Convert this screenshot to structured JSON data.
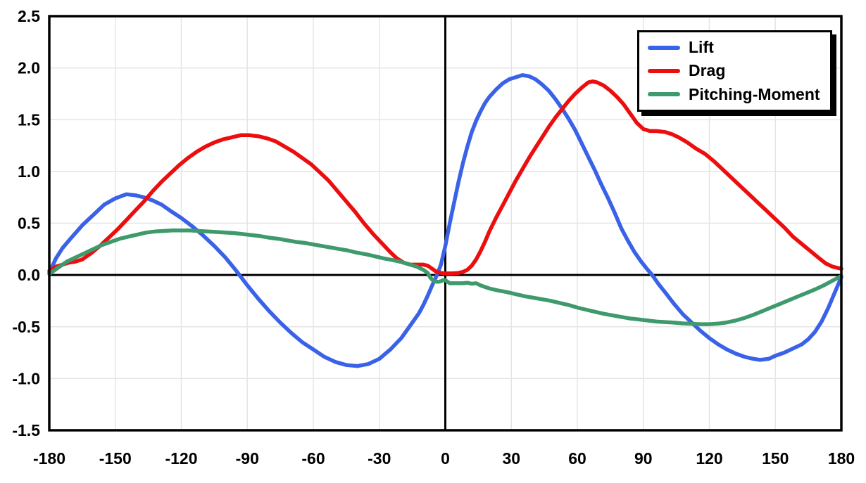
{
  "chart_data": {
    "type": "line",
    "title": "",
    "xlabel": "",
    "ylabel": "",
    "xlim": [
      -180,
      180
    ],
    "ylim": [
      -1.5,
      2.5
    ],
    "grid": true,
    "legend_position": "top-right",
    "zero_axis_lines": true,
    "colors": {
      "grid": "#E5E5E7",
      "axis": "#000000",
      "background": "#FFFFFF"
    },
    "x_ticks": [
      -180,
      -150,
      -120,
      -90,
      -60,
      -30,
      0,
      30,
      60,
      90,
      120,
      150,
      180
    ],
    "x_tick_labels": [
      "-180",
      "-150",
      "-120",
      "-90",
      "-60",
      "-30",
      "0",
      "30",
      "60",
      "90",
      "120",
      "150",
      "180"
    ],
    "y_ticks": [
      2.5,
      2.0,
      1.5,
      1.0,
      0.5,
      0.0,
      -0.5,
      -1.0,
      -1.5
    ],
    "y_tick_labels": [
      "2.5",
      "2.0",
      "1.5",
      "1.0",
      "0.5",
      "0.0",
      "-0.5",
      "-1.0",
      "-1.5"
    ],
    "series": [
      {
        "name": "Lift",
        "color": "#3A62E8",
        "points": [
          [
            -180,
            0.02
          ],
          [
            -177,
            0.16
          ],
          [
            -174,
            0.26
          ],
          [
            -170,
            0.36
          ],
          [
            -165,
            0.48
          ],
          [
            -160,
            0.58
          ],
          [
            -155,
            0.68
          ],
          [
            -150,
            0.74
          ],
          [
            -145,
            0.78
          ],
          [
            -141,
            0.77
          ],
          [
            -137,
            0.75
          ],
          [
            -133,
            0.72
          ],
          [
            -129,
            0.68
          ],
          [
            -125,
            0.62
          ],
          [
            -120,
            0.55
          ],
          [
            -115,
            0.47
          ],
          [
            -110,
            0.38
          ],
          [
            -105,
            0.28
          ],
          [
            -100,
            0.17
          ],
          [
            -95,
            0.04
          ],
          [
            -90,
            -0.1
          ],
          [
            -85,
            -0.23
          ],
          [
            -80,
            -0.35
          ],
          [
            -75,
            -0.46
          ],
          [
            -70,
            -0.56
          ],
          [
            -65,
            -0.65
          ],
          [
            -60,
            -0.72
          ],
          [
            -55,
            -0.79
          ],
          [
            -50,
            -0.84
          ],
          [
            -45,
            -0.87
          ],
          [
            -40,
            -0.88
          ],
          [
            -35,
            -0.86
          ],
          [
            -30,
            -0.81
          ],
          [
            -25,
            -0.72
          ],
          [
            -20,
            -0.61
          ],
          [
            -15,
            -0.46
          ],
          [
            -12,
            -0.37
          ],
          [
            -10,
            -0.29
          ],
          [
            -8,
            -0.2
          ],
          [
            -6,
            -0.1
          ],
          [
            -4,
            -0.01
          ],
          [
            -2,
            0.1
          ],
          [
            0,
            0.28
          ],
          [
            2,
            0.5
          ],
          [
            4,
            0.7
          ],
          [
            6,
            0.9
          ],
          [
            8,
            1.08
          ],
          [
            10,
            1.24
          ],
          [
            12,
            1.38
          ],
          [
            14,
            1.49
          ],
          [
            16,
            1.58
          ],
          [
            18,
            1.66
          ],
          [
            20,
            1.72
          ],
          [
            23,
            1.79
          ],
          [
            26,
            1.85
          ],
          [
            29,
            1.89
          ],
          [
            32,
            1.91
          ],
          [
            35,
            1.93
          ],
          [
            38,
            1.92
          ],
          [
            41,
            1.89
          ],
          [
            44,
            1.84
          ],
          [
            47,
            1.78
          ],
          [
            50,
            1.7
          ],
          [
            53,
            1.61
          ],
          [
            56,
            1.51
          ],
          [
            59,
            1.4
          ],
          [
            62,
            1.27
          ],
          [
            65,
            1.14
          ],
          [
            68,
            1.01
          ],
          [
            71,
            0.87
          ],
          [
            74,
            0.74
          ],
          [
            77,
            0.6
          ],
          [
            80,
            0.45
          ],
          [
            83,
            0.33
          ],
          [
            86,
            0.22
          ],
          [
            89,
            0.13
          ],
          [
            92,
            0.05
          ],
          [
            94,
            0.0
          ],
          [
            97,
            -0.09
          ],
          [
            100,
            -0.17
          ],
          [
            104,
            -0.28
          ],
          [
            108,
            -0.38
          ],
          [
            112,
            -0.46
          ],
          [
            116,
            -0.54
          ],
          [
            120,
            -0.61
          ],
          [
            124,
            -0.67
          ],
          [
            128,
            -0.72
          ],
          [
            132,
            -0.76
          ],
          [
            136,
            -0.79
          ],
          [
            140,
            -0.81
          ],
          [
            143,
            -0.82
          ],
          [
            147,
            -0.81
          ],
          [
            150,
            -0.78
          ],
          [
            154,
            -0.75
          ],
          [
            158,
            -0.71
          ],
          [
            162,
            -0.67
          ],
          [
            165,
            -0.62
          ],
          [
            168,
            -0.55
          ],
          [
            171,
            -0.45
          ],
          [
            174,
            -0.32
          ],
          [
            177,
            -0.17
          ],
          [
            180,
            -0.02
          ]
        ]
      },
      {
        "name": "Drag",
        "color": "#EC0E0E",
        "points": [
          [
            -180,
            0.04
          ],
          [
            -177,
            0.08
          ],
          [
            -174,
            0.1
          ],
          [
            -171,
            0.12
          ],
          [
            -168,
            0.13
          ],
          [
            -165,
            0.15
          ],
          [
            -161,
            0.21
          ],
          [
            -157,
            0.28
          ],
          [
            -153,
            0.36
          ],
          [
            -149,
            0.44
          ],
          [
            -145,
            0.53
          ],
          [
            -141,
            0.62
          ],
          [
            -137,
            0.71
          ],
          [
            -133,
            0.81
          ],
          [
            -129,
            0.9
          ],
          [
            -125,
            0.98
          ],
          [
            -121,
            1.06
          ],
          [
            -117,
            1.13
          ],
          [
            -113,
            1.19
          ],
          [
            -109,
            1.24
          ],
          [
            -105,
            1.28
          ],
          [
            -101,
            1.31
          ],
          [
            -97,
            1.33
          ],
          [
            -93,
            1.35
          ],
          [
            -89,
            1.35
          ],
          [
            -85,
            1.34
          ],
          [
            -81,
            1.32
          ],
          [
            -77,
            1.29
          ],
          [
            -73,
            1.24
          ],
          [
            -69,
            1.19
          ],
          [
            -65,
            1.13
          ],
          [
            -61,
            1.07
          ],
          [
            -57,
            0.99
          ],
          [
            -53,
            0.91
          ],
          [
            -49,
            0.81
          ],
          [
            -45,
            0.71
          ],
          [
            -41,
            0.61
          ],
          [
            -37,
            0.5
          ],
          [
            -33,
            0.4
          ],
          [
            -29,
            0.31
          ],
          [
            -25,
            0.22
          ],
          [
            -22,
            0.16
          ],
          [
            -19,
            0.12
          ],
          [
            -16,
            0.1
          ],
          [
            -13,
            0.1
          ],
          [
            -10,
            0.1
          ],
          [
            -8,
            0.09
          ],
          [
            -6,
            0.06
          ],
          [
            -4,
            0.03
          ],
          [
            -2,
            0.02
          ],
          [
            0,
            0.015
          ],
          [
            3,
            0.015
          ],
          [
            6,
            0.02
          ],
          [
            8,
            0.03
          ],
          [
            10,
            0.05
          ],
          [
            12,
            0.09
          ],
          [
            14,
            0.15
          ],
          [
            16,
            0.23
          ],
          [
            18,
            0.32
          ],
          [
            20,
            0.42
          ],
          [
            23,
            0.55
          ],
          [
            26,
            0.67
          ],
          [
            29,
            0.79
          ],
          [
            32,
            0.91
          ],
          [
            35,
            1.02
          ],
          [
            38,
            1.13
          ],
          [
            41,
            1.23
          ],
          [
            44,
            1.33
          ],
          [
            47,
            1.43
          ],
          [
            50,
            1.52
          ],
          [
            53,
            1.6
          ],
          [
            56,
            1.68
          ],
          [
            59,
            1.75
          ],
          [
            62,
            1.81
          ],
          [
            65,
            1.86
          ],
          [
            67,
            1.87
          ],
          [
            69,
            1.86
          ],
          [
            72,
            1.83
          ],
          [
            75,
            1.78
          ],
          [
            78,
            1.72
          ],
          [
            81,
            1.65
          ],
          [
            84,
            1.56
          ],
          [
            87,
            1.47
          ],
          [
            90,
            1.41
          ],
          [
            93,
            1.39
          ],
          [
            96,
            1.39
          ],
          [
            100,
            1.38
          ],
          [
            103,
            1.36
          ],
          [
            106,
            1.33
          ],
          [
            110,
            1.28
          ],
          [
            114,
            1.22
          ],
          [
            118,
            1.17
          ],
          [
            122,
            1.1
          ],
          [
            126,
            1.02
          ],
          [
            130,
            0.94
          ],
          [
            134,
            0.86
          ],
          [
            138,
            0.78
          ],
          [
            142,
            0.7
          ],
          [
            146,
            0.62
          ],
          [
            150,
            0.54
          ],
          [
            154,
            0.46
          ],
          [
            158,
            0.37
          ],
          [
            162,
            0.3
          ],
          [
            166,
            0.23
          ],
          [
            170,
            0.16
          ],
          [
            173,
            0.11
          ],
          [
            176,
            0.08
          ],
          [
            178,
            0.07
          ],
          [
            180,
            0.06
          ]
        ]
      },
      {
        "name": "Pitching-Moment",
        "color": "#3E9A6C",
        "points": [
          [
            -180,
            0.01
          ],
          [
            -176,
            0.07
          ],
          [
            -172,
            0.13
          ],
          [
            -168,
            0.17
          ],
          [
            -164,
            0.21
          ],
          [
            -160,
            0.25
          ],
          [
            -156,
            0.29
          ],
          [
            -152,
            0.32
          ],
          [
            -148,
            0.35
          ],
          [
            -144,
            0.37
          ],
          [
            -140,
            0.39
          ],
          [
            -136,
            0.41
          ],
          [
            -132,
            0.42
          ],
          [
            -128,
            0.425
          ],
          [
            -124,
            0.43
          ],
          [
            -120,
            0.43
          ],
          [
            -116,
            0.43
          ],
          [
            -112,
            0.425
          ],
          [
            -108,
            0.42
          ],
          [
            -104,
            0.415
          ],
          [
            -100,
            0.41
          ],
          [
            -96,
            0.405
          ],
          [
            -92,
            0.395
          ],
          [
            -88,
            0.385
          ],
          [
            -84,
            0.375
          ],
          [
            -80,
            0.36
          ],
          [
            -76,
            0.35
          ],
          [
            -72,
            0.335
          ],
          [
            -68,
            0.32
          ],
          [
            -64,
            0.31
          ],
          [
            -60,
            0.295
          ],
          [
            -56,
            0.28
          ],
          [
            -52,
            0.265
          ],
          [
            -48,
            0.25
          ],
          [
            -44,
            0.235
          ],
          [
            -40,
            0.215
          ],
          [
            -36,
            0.2
          ],
          [
            -32,
            0.18
          ],
          [
            -28,
            0.16
          ],
          [
            -24,
            0.145
          ],
          [
            -20,
            0.125
          ],
          [
            -16,
            0.1
          ],
          [
            -13,
            0.08
          ],
          [
            -10,
            0.05
          ],
          [
            -8,
            0.02
          ],
          [
            -7,
            -0.02
          ],
          [
            -6,
            -0.045
          ],
          [
            -5,
            -0.06
          ],
          [
            -4,
            -0.065
          ],
          [
            -3,
            -0.065
          ],
          [
            -2,
            -0.06
          ],
          [
            -1,
            -0.05
          ],
          [
            0,
            -0.05
          ],
          [
            1,
            -0.065
          ],
          [
            2,
            -0.08
          ],
          [
            4,
            -0.08
          ],
          [
            6,
            -0.08
          ],
          [
            8,
            -0.08
          ],
          [
            10,
            -0.075
          ],
          [
            12,
            -0.085
          ],
          [
            14,
            -0.08
          ],
          [
            16,
            -0.1
          ],
          [
            18,
            -0.115
          ],
          [
            20,
            -0.13
          ],
          [
            24,
            -0.15
          ],
          [
            28,
            -0.165
          ],
          [
            32,
            -0.185
          ],
          [
            36,
            -0.205
          ],
          [
            40,
            -0.22
          ],
          [
            44,
            -0.235
          ],
          [
            48,
            -0.25
          ],
          [
            52,
            -0.27
          ],
          [
            56,
            -0.29
          ],
          [
            60,
            -0.315
          ],
          [
            64,
            -0.335
          ],
          [
            68,
            -0.355
          ],
          [
            72,
            -0.375
          ],
          [
            76,
            -0.39
          ],
          [
            80,
            -0.405
          ],
          [
            84,
            -0.42
          ],
          [
            88,
            -0.43
          ],
          [
            92,
            -0.44
          ],
          [
            96,
            -0.45
          ],
          [
            100,
            -0.455
          ],
          [
            104,
            -0.46
          ],
          [
            108,
            -0.468
          ],
          [
            112,
            -0.472
          ],
          [
            116,
            -0.475
          ],
          [
            120,
            -0.475
          ],
          [
            124,
            -0.47
          ],
          [
            128,
            -0.458
          ],
          [
            132,
            -0.44
          ],
          [
            136,
            -0.415
          ],
          [
            140,
            -0.385
          ],
          [
            144,
            -0.35
          ],
          [
            148,
            -0.315
          ],
          [
            152,
            -0.28
          ],
          [
            156,
            -0.245
          ],
          [
            160,
            -0.21
          ],
          [
            164,
            -0.175
          ],
          [
            168,
            -0.14
          ],
          [
            172,
            -0.1
          ],
          [
            176,
            -0.055
          ],
          [
            180,
            -0.01
          ]
        ]
      }
    ]
  }
}
